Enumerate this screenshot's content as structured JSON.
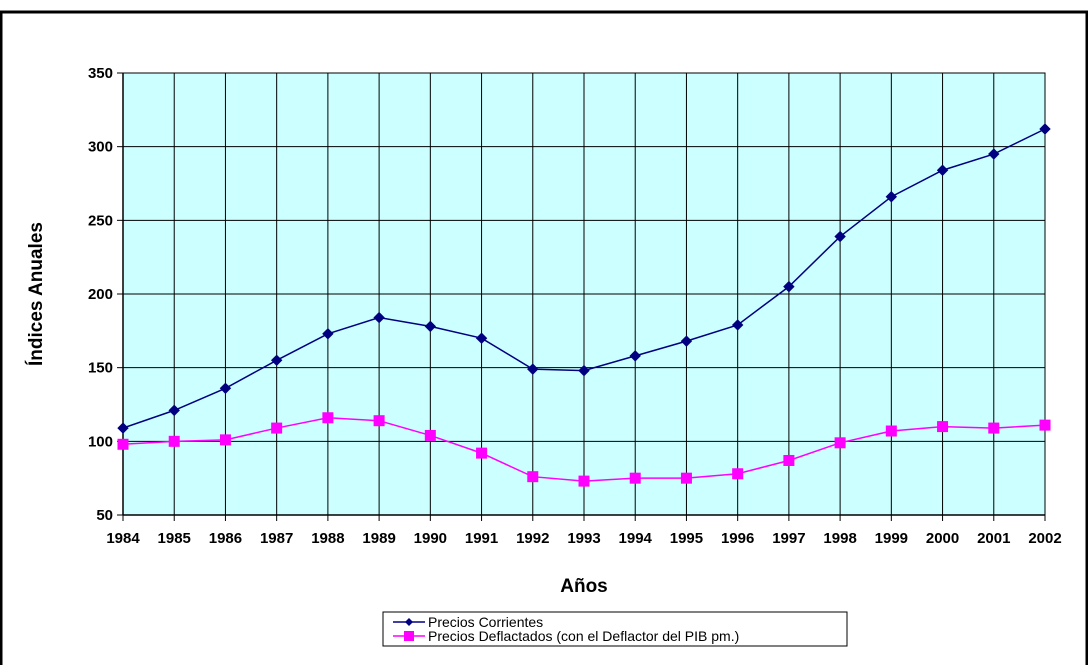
{
  "chart_data": {
    "type": "line",
    "title": "",
    "xlabel": "Años",
    "ylabel": "Índices Anuales",
    "ylim": [
      50,
      350
    ],
    "yticks": [
      50,
      100,
      150,
      200,
      250,
      300,
      350
    ],
    "grid": true,
    "legend_position": "bottom-center",
    "plot_background": "#ccffff",
    "categories": [
      "1984",
      "1985",
      "1986",
      "1987",
      "1988",
      "1989",
      "1990",
      "1991",
      "1992",
      "1993",
      "1994",
      "1995",
      "1996",
      "1997",
      "1998",
      "1999",
      "2000",
      "2001",
      "2002"
    ],
    "series": [
      {
        "name": "Precios Corrientes",
        "color": "#000080",
        "marker": "diamond",
        "values": [
          109,
          121,
          136,
          155,
          173,
          184,
          178,
          170,
          149,
          148,
          158,
          168,
          179,
          205,
          239,
          266,
          284,
          295,
          312
        ]
      },
      {
        "name": "Precios Deflactados (con el Deflactor del PIB pm.)",
        "color": "#ff00ff",
        "marker": "square",
        "values": [
          98,
          100,
          101,
          109,
          116,
          114,
          104,
          92,
          76,
          73,
          75,
          75,
          78,
          87,
          99,
          107,
          110,
          109,
          111
        ]
      }
    ]
  }
}
